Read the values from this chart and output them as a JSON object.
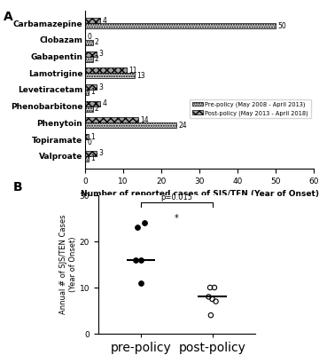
{
  "panel_A": {
    "categories": [
      "Carbamazepine",
      "Clobazam",
      "Gabapentin",
      "Lamotrigine",
      "Levetiracetam",
      "Phenobarbitone",
      "Phenytoin",
      "Topiramate",
      "Valproate"
    ],
    "pre_policy": [
      50,
      2,
      2,
      13,
      1,
      2,
      24,
      0,
      1
    ],
    "post_policy": [
      4,
      0,
      3,
      11,
      3,
      4,
      14,
      1,
      3
    ],
    "pre_label": "Pre-policy (May 2008 - April 2013)",
    "post_label": "Post-policy (May 2013 - April 2018)",
    "xlabel": "Number of reported cases of SJS/TEN (Year of Onset)",
    "xlim": [
      0,
      60
    ],
    "xticks": [
      0,
      10,
      20,
      30,
      40,
      50,
      60
    ]
  },
  "panel_B": {
    "pre_policy_dots": [
      23,
      24,
      16,
      16,
      11
    ],
    "post_policy_dots": [
      10,
      10,
      8,
      7.5,
      7,
      4
    ],
    "pre_median": 16,
    "post_median": 8,
    "ylabel_line1": "Annual # of SJS/TEN Cases",
    "ylabel_line2": "(Year of Onset)",
    "ylim": [
      0,
      30
    ],
    "yticks": [
      0,
      10,
      20,
      30
    ],
    "p_value": "p=0.015",
    "significance": "*",
    "xlabel_pre": "pre-policy",
    "xlabel_post": "post-policy"
  }
}
